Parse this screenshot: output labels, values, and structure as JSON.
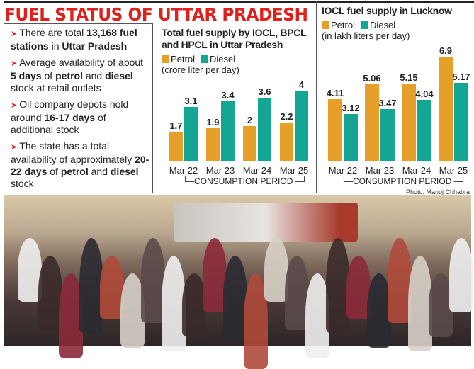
{
  "title": "FUEL STATUS OF UTTAR PRADESH",
  "bullets": [
    {
      "parts": [
        [
          "There are total ",
          false
        ],
        [
          "13,168 fuel stations",
          true
        ],
        [
          " in ",
          false
        ],
        [
          "Uttar Pradesh",
          true
        ]
      ]
    },
    {
      "parts": [
        [
          "Average availability of about ",
          false
        ],
        [
          "5 days",
          true
        ],
        [
          " of ",
          false
        ],
        [
          "petrol",
          true
        ],
        [
          " and ",
          false
        ],
        [
          "diesel",
          true
        ],
        [
          " stock at retail outlets",
          false
        ]
      ]
    },
    {
      "parts": [
        [
          "Oil company depots hold around ",
          false
        ],
        [
          "16-17 days",
          true
        ],
        [
          " of additional stock",
          false
        ]
      ]
    },
    {
      "parts": [
        [
          "The state has a total availability of approximately ",
          false
        ],
        [
          "20-22 days",
          true
        ],
        [
          " of ",
          false
        ],
        [
          "petrol",
          true
        ],
        [
          " and ",
          false
        ],
        [
          "diesel",
          true
        ],
        [
          " stock",
          false
        ]
      ]
    }
  ],
  "colors": {
    "petrol": "#e6a02a",
    "diesel": "#14a695",
    "title": "#e0201b"
  },
  "chart_data": [
    {
      "type": "bar",
      "title": "Total fuel supply by IOCL, BPCL and HPCL in Uttar Pradesh",
      "unit": "(crore liter per day)",
      "xlabel": "CONSUMPTION PERIOD",
      "categories": [
        "Mar 22",
        "Mar 23",
        "Mar 24",
        "Mar 25"
      ],
      "series": [
        {
          "name": "Petrol",
          "values": [
            1.7,
            1.9,
            2,
            2.2
          ]
        },
        {
          "name": "Diesel",
          "values": [
            3.1,
            3.4,
            3.6,
            4
          ]
        }
      ]
    },
    {
      "type": "bar",
      "title": "IOCL fuel supply in Lucknow",
      "unit": "(in lakh liters per day)",
      "xlabel": "CONSUMPTION PERIOD",
      "categories": [
        "Mar 22",
        "Mar 23",
        "Mar 24",
        "Mar 25"
      ],
      "series": [
        {
          "name": "Petrol",
          "values": [
            4.11,
            5.06,
            5.15,
            6.9
          ]
        },
        {
          "name": "Diesel",
          "values": [
            3.12,
            3.47,
            4.04,
            5.17
          ]
        }
      ]
    }
  ],
  "credit": "Photo: Manoj Chhabra"
}
